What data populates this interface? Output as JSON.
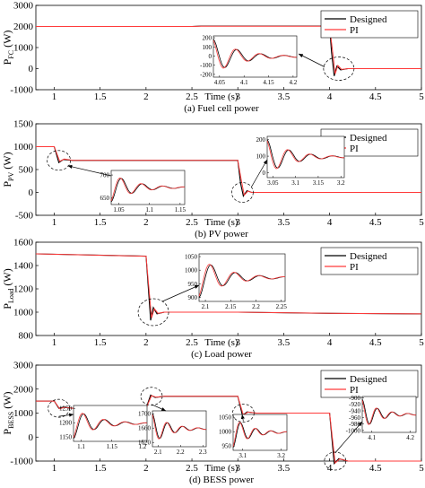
{
  "colors": {
    "designed": "#000000",
    "pi": "#ff3b3b",
    "arrow": "#000000"
  },
  "chart_data": [
    {
      "type": "line",
      "caption": "(a) Fuel cell power",
      "ylabel_main": "P",
      "ylabel_sub": "FC",
      "ylabel_unit": " (W)",
      "xlabel": "Time (s)",
      "xlim": [
        0.8,
        5
      ],
      "ylim": [
        -1000,
        3000
      ],
      "xticks": [
        "1",
        "1.5",
        "2",
        "2.5",
        "3",
        "3.5",
        "4",
        "4.5",
        "5"
      ],
      "yticks": [
        "-1000",
        "0",
        "1000",
        "2000",
        "3000"
      ],
      "legend": [
        "Designed",
        "PI"
      ],
      "series": [
        {
          "name": "Designed",
          "x": [
            0.8,
            2.5,
            2.6,
            3.9,
            4.0,
            4.02,
            4.05,
            4.08,
            4.12,
            4.2,
            5.0
          ],
          "y": [
            2000,
            2000,
            2020,
            2020,
            2000,
            800,
            -350,
            120,
            -60,
            0,
            0
          ]
        },
        {
          "name": "PI",
          "x": [
            0.8,
            2.5,
            2.6,
            3.9,
            4.0,
            4.03,
            4.06,
            4.09,
            4.13,
            4.2,
            5.0
          ],
          "y": [
            2000,
            2000,
            2010,
            2010,
            2000,
            900,
            -250,
            150,
            -40,
            0,
            0
          ]
        }
      ],
      "inset": {
        "xticks": [
          "4.05",
          "4.1",
          "4.15",
          "4.2"
        ],
        "yticks": [
          "-200",
          "-100",
          "0",
          "100",
          "200"
        ]
      }
    },
    {
      "type": "line",
      "caption": "(b) PV power",
      "ylabel_main": "P",
      "ylabel_sub": "PV",
      "ylabel_unit": " (W)",
      "xlabel": "Time (s)",
      "xlim": [
        0.8,
        5
      ],
      "ylim": [
        -500,
        1500
      ],
      "xticks": [
        "1",
        "1.5",
        "2",
        "2.5",
        "3",
        "3.5",
        "4",
        "4.5",
        "5"
      ],
      "yticks": [
        "-500",
        "0",
        "500",
        "1000",
        "1500"
      ],
      "legend": [
        "Designed",
        "PI"
      ],
      "series": [
        {
          "name": "Designed",
          "x": [
            0.8,
            1.0,
            1.05,
            1.1,
            1.2,
            3.0,
            3.03,
            3.06,
            3.1,
            3.15,
            5.0
          ],
          "y": [
            1000,
            1000,
            650,
            720,
            700,
            700,
            200,
            -80,
            40,
            0,
            0
          ]
        },
        {
          "name": "PI",
          "x": [
            0.8,
            1.0,
            1.06,
            1.11,
            1.2,
            3.0,
            3.04,
            3.07,
            3.11,
            3.15,
            5.0
          ],
          "y": [
            1000,
            1000,
            680,
            730,
            700,
            700,
            250,
            -60,
            30,
            0,
            0
          ]
        }
      ],
      "inset_left": {
        "xticks": [
          "1.05",
          "1.1",
          "1.15"
        ],
        "yticks": [
          "650",
          "700"
        ]
      },
      "inset_right": {
        "xticks": [
          "3.05",
          "3.1",
          "3.15",
          "3.2"
        ],
        "yticks": [
          "0",
          "100",
          "200"
        ]
      }
    },
    {
      "type": "line",
      "caption": "(c) Load power",
      "ylabel_main": "P",
      "ylabel_sub": "Load",
      "ylabel_unit": " (W)",
      "xlabel": "Time (s)",
      "xlim": [
        0.8,
        5
      ],
      "ylim": [
        800,
        1600
      ],
      "xticks": [
        "1",
        "1.5",
        "2",
        "2.5",
        "3",
        "3.5",
        "4",
        "4.5",
        "5"
      ],
      "yticks": [
        "800",
        "1000",
        "1200",
        "1400",
        "1600"
      ],
      "legend": [
        "Designed",
        "PI"
      ],
      "series": [
        {
          "name": "Designed",
          "x": [
            0.8,
            2.0,
            2.05,
            2.08,
            2.12,
            2.2,
            3.0,
            4.0,
            5.0
          ],
          "y": [
            1500,
            1480,
            930,
            1040,
            985,
            1000,
            1000,
            990,
            985
          ]
        },
        {
          "name": "PI",
          "x": [
            0.8,
            2.0,
            2.06,
            2.09,
            2.13,
            2.2,
            3.0,
            4.0,
            5.0
          ],
          "y": [
            1500,
            1480,
            950,
            1030,
            990,
            1000,
            1000,
            990,
            985
          ]
        }
      ],
      "inset": {
        "xticks": [
          "2.1",
          "2.15",
          "2.2",
          "2.25"
        ],
        "yticks": [
          "900",
          "950",
          "1000",
          "1050"
        ]
      }
    },
    {
      "type": "line",
      "caption": "(d) BESS power",
      "ylabel_main": "P",
      "ylabel_sub": "BESS",
      "ylabel_unit": " (W)",
      "xlabel": "Time (s)",
      "xlim": [
        0.8,
        5
      ],
      "ylim": [
        -1000,
        3000
      ],
      "xticks": [
        "1",
        "1.5",
        "2",
        "2.5",
        "3",
        "3.5",
        "4",
        "4.5",
        "5"
      ],
      "yticks": [
        "-1000",
        "0",
        "1000",
        "2000",
        "3000"
      ],
      "legend": [
        "Designed",
        "PI"
      ],
      "series": [
        {
          "name": "Designed",
          "x": [
            0.8,
            1.0,
            1.05,
            1.1,
            1.2,
            2.0,
            2.05,
            2.1,
            2.2,
            3.0,
            3.05,
            3.1,
            3.2,
            4.0,
            4.05,
            4.1,
            4.2,
            5.0
          ],
          "y": [
            1500,
            1500,
            1200,
            1250,
            1200,
            1200,
            1750,
            1650,
            1700,
            1700,
            900,
            1050,
            1000,
            1000,
            -1100,
            -900,
            -1000,
            -1000
          ]
        },
        {
          "name": "PI",
          "x": [
            0.8,
            1.0,
            1.06,
            1.11,
            1.2,
            2.0,
            2.06,
            2.11,
            2.2,
            3.0,
            3.06,
            3.11,
            3.2,
            4.0,
            4.06,
            4.11,
            4.2,
            5.0
          ],
          "y": [
            1500,
            1500,
            1180,
            1240,
            1200,
            1200,
            1730,
            1660,
            1700,
            1700,
            920,
            1040,
            1000,
            1000,
            -1080,
            -910,
            -1000,
            -1000
          ]
        }
      ],
      "insets": [
        {
          "xticks": [
            "1.1",
            "1.15",
            "1.2"
          ],
          "yticks": [
            "1150",
            "1200",
            "1250"
          ]
        },
        {
          "xticks": [
            "2.1",
            "2.2",
            "2.3"
          ],
          "yticks": [
            "1620",
            "1660",
            "1700"
          ]
        },
        {
          "xticks": [
            "3.1",
            "3.2"
          ],
          "yticks": [
            "950",
            "1000",
            "1050"
          ]
        },
        {
          "xticks": [
            "4.1",
            "4.2"
          ],
          "yticks": [
            "-1000",
            "-980",
            "-960",
            "-940",
            "-920",
            "-900"
          ]
        }
      ]
    }
  ]
}
